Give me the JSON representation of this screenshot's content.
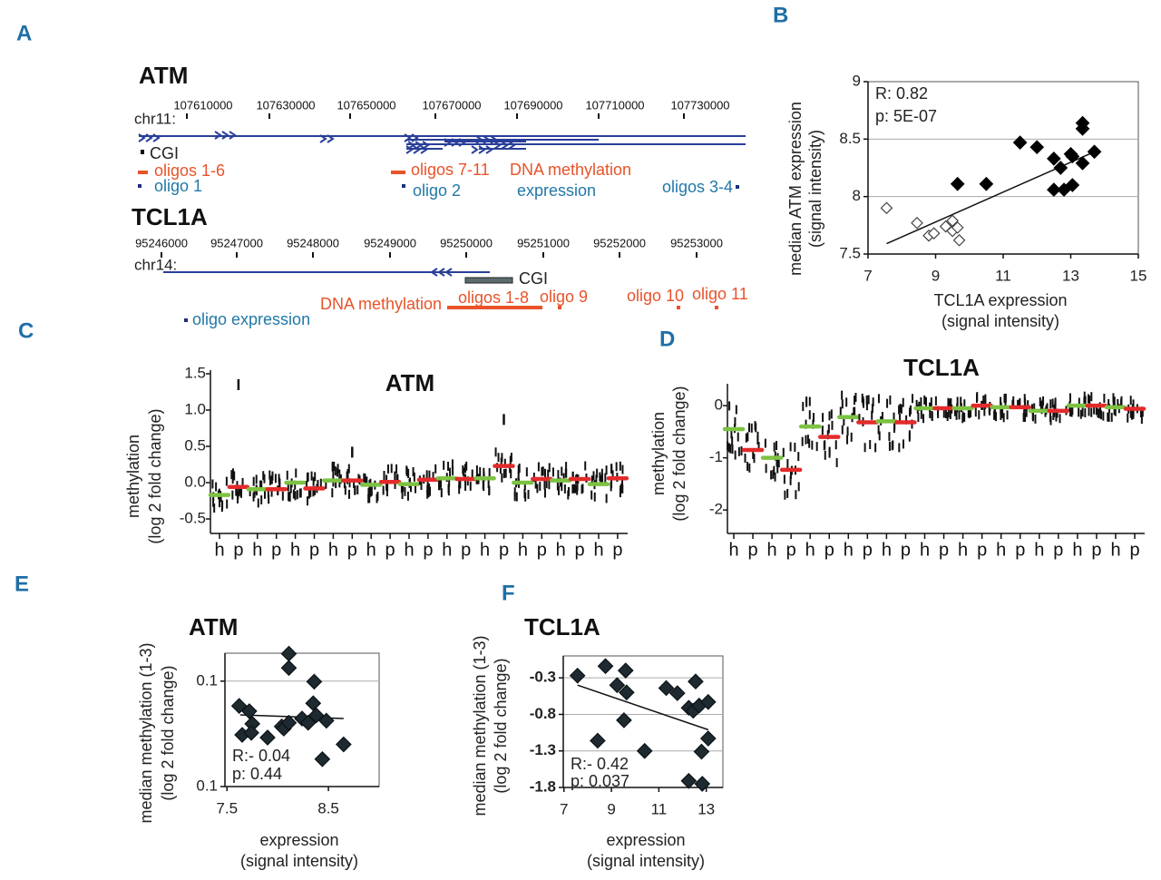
{
  "panel_labels": [
    "A",
    "B",
    "C",
    "D",
    "E",
    "F"
  ],
  "colors": {
    "panel_label": "#1f6fa6",
    "orange": "#e8532a",
    "teal": "#2278a8",
    "gene_line": "#2a3f9a",
    "green": "#7dc242",
    "red": "#e32b2b",
    "marker": "#1e2a30"
  },
  "panel_a": {
    "atm": {
      "title": "ATM",
      "chrom": "chr11:",
      "ticks": [
        "107610000",
        "107630000",
        "107650000",
        "107670000",
        "107690000",
        "107710000",
        "107730000"
      ],
      "cgi": "CGI",
      "oligos_1_6": "oligos 1-6",
      "oligo_1": "oligo 1",
      "oligos_7_11": "oligos 7-11",
      "oligo_2": "oligo 2",
      "dna_methylation": "DNA methylation",
      "expression": "expression",
      "oligos_3_4": "oligos 3-4"
    },
    "tcl1a": {
      "title": "TCL1A",
      "chrom": "chr14:",
      "ticks": [
        "95246000",
        "95247000",
        "95248000",
        "95249000",
        "95250000",
        "95251000",
        "95252000",
        "95253000"
      ],
      "cgi": "CGI",
      "dna_methylation": "DNA methylation",
      "oligos_1_8": "oligos 1-8",
      "oligo_9": "oligo 9",
      "oligo_10": "oligo 10",
      "oligo_11": "oligo 11",
      "oligo_expression": "oligo expression"
    }
  },
  "chart_data": [
    {
      "panel": "B",
      "type": "scatter",
      "xlabel": [
        "TCL1A expression",
        "(signal intensity)"
      ],
      "ylabel": [
        "median ATM expression",
        "(signal intensity)"
      ],
      "xlim": [
        7,
        15
      ],
      "ylim": [
        7.5,
        9
      ],
      "xticks": [
        "7",
        "9",
        "11",
        "13",
        "15"
      ],
      "yticks": [
        "9",
        "8.5",
        "8",
        "7.5"
      ],
      "grid": [
        8,
        8.5
      ],
      "annotations": [
        "R: 0.82",
        "p: 5E-07"
      ],
      "series": [
        {
          "marker": "filled-diamond",
          "points": [
            [
              9.65,
              8.11
            ],
            [
              10.5,
              8.11
            ],
            [
              11.5,
              8.47
            ],
            [
              12,
              8.43
            ],
            [
              12.5,
              8.33
            ],
            [
              12.5,
              8.06
            ],
            [
              12.7,
              8.25
            ],
            [
              12.8,
              8.06
            ],
            [
              13,
              8.37
            ],
            [
              13.05,
              8.35
            ],
            [
              13.05,
              8.1
            ],
            [
              13.35,
              8.64
            ],
            [
              13.35,
              8.59
            ],
            [
              13.35,
              8.29
            ],
            [
              13.7,
              8.39
            ]
          ]
        },
        {
          "marker": "open-diamond",
          "points": [
            [
              7.55,
              7.9
            ],
            [
              8.45,
              7.77
            ],
            [
              8.8,
              7.66
            ],
            [
              8.95,
              7.68
            ],
            [
              9.3,
              7.74
            ],
            [
              9.5,
              7.79
            ],
            [
              9.5,
              7.7
            ],
            [
              9.65,
              7.73
            ],
            [
              9.7,
              7.62
            ]
          ]
        }
      ],
      "trendline": [
        [
          7.55,
          7.59
        ],
        [
          13.7,
          8.39
        ]
      ]
    },
    {
      "panel": "C",
      "type": "scatter",
      "title": "ATM",
      "ylabel": [
        "methylation",
        "(log 2 fold change)"
      ],
      "ylim": [
        -0.7,
        1.55
      ],
      "yticks": [
        1.5,
        1.0,
        0.5,
        0.0,
        -0.5
      ],
      "ytick_labels": [
        "1.5",
        "1.0",
        "0.5",
        "0.0",
        "-0.5"
      ],
      "categories": [
        "h",
        "p",
        "h",
        "p",
        "h",
        "p",
        "h",
        "p",
        "h",
        "p",
        "h",
        "p",
        "h",
        "p",
        "h",
        "p",
        "h",
        "p",
        "h",
        "p",
        "h",
        "p"
      ],
      "medians": [
        -0.17,
        -0.06,
        -0.09,
        -0.09,
        0.0,
        -0.08,
        0.03,
        0.03,
        -0.03,
        0.01,
        -0.02,
        0.04,
        0.06,
        0.05,
        0.06,
        0.23,
        0.0,
        0.05,
        0.03,
        0.05,
        -0.02,
        0.06
      ],
      "outliers": [
        [
          1,
          1.35
        ],
        [
          7,
          0.42
        ],
        [
          15,
          0.87
        ]
      ]
    },
    {
      "panel": "D",
      "type": "scatter",
      "title": "TCL1A",
      "ylabel": [
        "methylation",
        "(log 2 fold change)"
      ],
      "ylim": [
        -2.45,
        0.42
      ],
      "yticks": [
        0,
        -1,
        -2
      ],
      "ytick_labels": [
        "0",
        "-1",
        "-2"
      ],
      "categories": [
        "h",
        "p",
        "h",
        "p",
        "h",
        "p",
        "h",
        "p",
        "h",
        "p",
        "h",
        "p",
        "h",
        "p",
        "h",
        "p",
        "h",
        "p",
        "h",
        "p",
        "h",
        "p"
      ],
      "medians": [
        -0.45,
        -0.85,
        -1.0,
        -1.23,
        -0.4,
        -0.6,
        -0.22,
        -0.32,
        -0.3,
        -0.32,
        -0.05,
        -0.05,
        -0.05,
        0.0,
        -0.03,
        -0.03,
        -0.1,
        -0.1,
        0.0,
        0.0,
        -0.03,
        -0.06
      ]
    },
    {
      "panel": "E",
      "type": "scatter",
      "title": "ATM",
      "xlabel": [
        "expression",
        "(signal intensity)"
      ],
      "ylabel": [
        "median methylation (1-3)",
        "(log 2 fold change)"
      ],
      "xlim": [
        7.48,
        9.0
      ],
      "ylim": [
        -0.1,
        0.153
      ],
      "xticks": [
        7.5,
        8.5
      ],
      "xtick_labels": [
        "7.5",
        "8.5"
      ],
      "yticks": [
        0.1,
        -0.1
      ],
      "ytick_labels": [
        "0.1",
        "0.1"
      ],
      "grid": [
        0.1
      ],
      "annotations": [
        "R:- 0.04",
        "p: 0.44"
      ],
      "points": [
        [
          8.11,
          0.152
        ],
        [
          8.11,
          0.125
        ],
        [
          8.36,
          0.099
        ],
        [
          7.62,
          0.053
        ],
        [
          7.72,
          0.043
        ],
        [
          7.75,
          0.019
        ],
        [
          7.65,
          -0.002
        ],
        [
          7.74,
          0.002
        ],
        [
          7.9,
          -0.007
        ],
        [
          8.04,
          0.014
        ],
        [
          8.06,
          0.01
        ],
        [
          8.11,
          0.021
        ],
        [
          8.24,
          0.029
        ],
        [
          8.3,
          0.021
        ],
        [
          8.35,
          0.058
        ],
        [
          8.38,
          0.035
        ],
        [
          8.48,
          0.025
        ],
        [
          8.44,
          -0.048
        ],
        [
          8.65,
          -0.02
        ]
      ],
      "trendline": [
        [
          7.63,
          0.036
        ],
        [
          8.65,
          0.029
        ]
      ]
    },
    {
      "panel": "F",
      "type": "scatter",
      "title": "TCL1A",
      "xlabel": [
        "expression",
        "(signal intensity)"
      ],
      "ylabel": [
        "median methylation (1-3)",
        "(log 2 fold change)"
      ],
      "xlim": [
        6.97,
        13.7
      ],
      "ylim": [
        -1.8,
        0
      ],
      "xticks": [
        7,
        9,
        11,
        13
      ],
      "xtick_labels": [
        "7",
        "9",
        "11",
        "13"
      ],
      "yticks": [
        -0.3,
        -0.8,
        -1.3,
        -1.8
      ],
      "ytick_labels": [
        "-0.3",
        "-0.8",
        "-1.3",
        "-1.8"
      ],
      "grid": [
        -0.3,
        -0.8,
        -1.3
      ],
      "annotations": [
        "R:- 0.42",
        "p: 0.037"
      ],
      "points": [
        [
          7.57,
          -0.27
        ],
        [
          8.75,
          -0.14
        ],
        [
          9.6,
          -0.2
        ],
        [
          9.24,
          -0.4
        ],
        [
          9.64,
          -0.5
        ],
        [
          9.53,
          -0.88
        ],
        [
          8.42,
          -1.16
        ],
        [
          10.4,
          -1.3
        ],
        [
          11.31,
          -0.44
        ],
        [
          11.78,
          -0.51
        ],
        [
          12.55,
          -0.35
        ],
        [
          12.26,
          -0.71
        ],
        [
          12.45,
          -0.75
        ],
        [
          12.7,
          -0.68
        ],
        [
          13.08,
          -0.63
        ],
        [
          13.08,
          -1.13
        ],
        [
          12.8,
          -1.31
        ],
        [
          12.26,
          -1.71
        ],
        [
          12.83,
          -1.75
        ]
      ],
      "trendline": [
        [
          7.57,
          -0.4
        ],
        [
          13.08,
          -1.01
        ]
      ]
    }
  ]
}
